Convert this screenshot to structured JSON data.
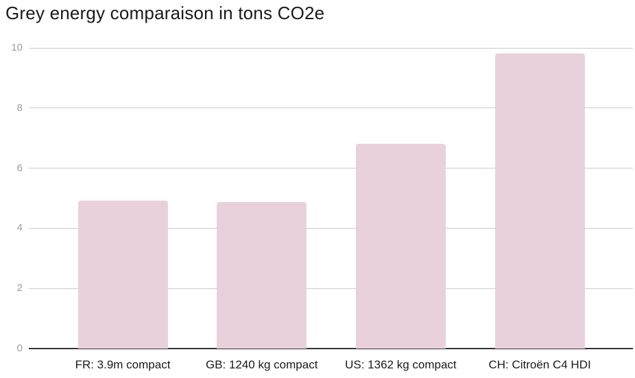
{
  "chart_data": {
    "type": "bar",
    "title": "Grey energy comparaison in tons CO2e",
    "categories": [
      "FR: 3.9m compact",
      "GB: 1240 kg compact",
      "US: 1362 kg compact",
      "CH: Citroën C4 HDI"
    ],
    "values": [
      4.93,
      4.88,
      6.81,
      9.82
    ],
    "xlabel": "",
    "ylabel": "",
    "ylim": [
      0,
      10
    ],
    "yticks": [
      0,
      2,
      4,
      6,
      8,
      10
    ],
    "grid": true,
    "legend": "none",
    "colors": {
      "bar": "#e9d1dc",
      "title_text": "#1a1a1a",
      "category_text": "#1a1a1a",
      "ytick_text": "#9e9e9e",
      "gridline": "#cccccc",
      "baseline": "#333333",
      "background": "#ffffff"
    }
  }
}
